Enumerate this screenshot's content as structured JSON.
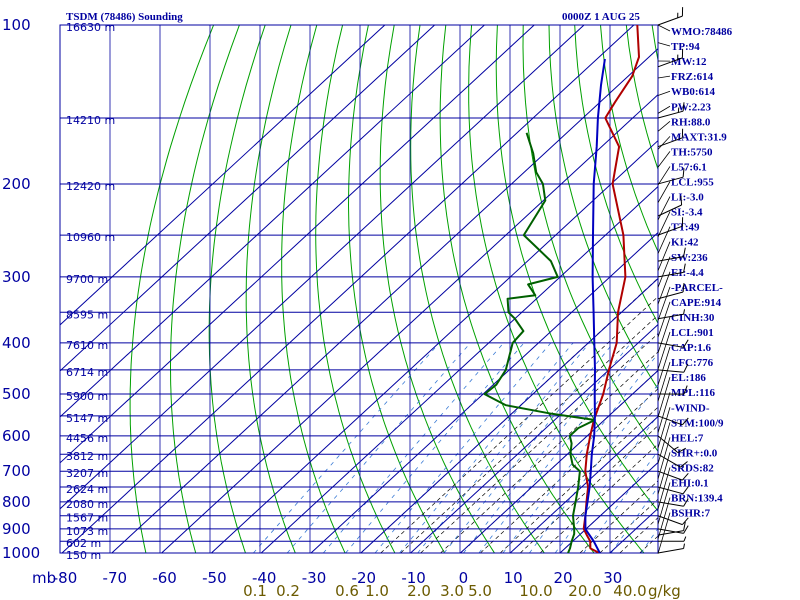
{
  "chart_data": {
    "type": "line",
    "title": "TSDM (78486) Sounding",
    "valid_time": "0000Z  1 AUG 25",
    "pressure_axis": {
      "unit": "mb",
      "ticks": [
        100,
        200,
        300,
        400,
        500,
        600,
        700,
        800,
        900,
        1000
      ],
      "range": [
        100,
        1000
      ],
      "scale": "log"
    },
    "temperature_axis": {
      "ticks": [
        "-80",
        "-70",
        "-60",
        "-50",
        "-40",
        "-30",
        "-20",
        "-10",
        "0",
        "10",
        "20",
        "30"
      ],
      "tick_values": [
        -80,
        -70,
        -60,
        -50,
        -40,
        -30,
        -20,
        -10,
        0,
        10,
        20,
        30
      ]
    },
    "mixing_ratio_axis": {
      "ticks": [
        "0.1",
        "0.2",
        "0.6",
        "1.0",
        "2.0",
        "3.0",
        "5.0",
        "10.0",
        "20.0",
        "40.0"
      ],
      "unit": "g/kg"
    },
    "heights": [
      {
        "p": 100,
        "label": "16630 m"
      },
      {
        "p": 150,
        "label": "14210 m"
      },
      {
        "p": 200,
        "label": "12420 m"
      },
      {
        "p": 250,
        "label": "10960 m"
      },
      {
        "p": 300,
        "label": "9700 m"
      },
      {
        "p": 350,
        "label": "8595 m"
      },
      {
        "p": 400,
        "label": "7610 m"
      },
      {
        "p": 450,
        "label": "6714 m"
      },
      {
        "p": 500,
        "label": "5900 m"
      },
      {
        "p": 550,
        "label": "5147 m"
      },
      {
        "p": 600,
        "label": "4456 m"
      },
      {
        "p": 650,
        "label": "3812 m"
      },
      {
        "p": 700,
        "label": "3207 m"
      },
      {
        "p": 750,
        "label": "2624 m"
      },
      {
        "p": 800,
        "label": "2080 m"
      },
      {
        "p": 850,
        "label": "1567 m"
      },
      {
        "p": 900,
        "label": "1073 m"
      },
      {
        "p": 950,
        "label": "602 m"
      },
      {
        "p": 1000,
        "label": "150 m"
      }
    ],
    "series": [
      {
        "name": "temperature",
        "color": "#b00000",
        "points": [
          [
            1000,
            27.9
          ],
          [
            980,
            25.1
          ],
          [
            950,
            23.5
          ],
          [
            925,
            21.5
          ],
          [
            900,
            19.5
          ],
          [
            850,
            17.0
          ],
          [
            800,
            14.2
          ],
          [
            750,
            11.3
          ],
          [
            700,
            7.3
          ],
          [
            650,
            3.9
          ],
          [
            600,
            0.6
          ],
          [
            560,
            -2.1
          ],
          [
            500,
            -5.9
          ],
          [
            450,
            -10.0
          ],
          [
            400,
            -14.3
          ],
          [
            350,
            -20.7
          ],
          [
            300,
            -26.9
          ],
          [
            250,
            -36.4
          ],
          [
            200,
            -49.7
          ],
          [
            170,
            -56.5
          ],
          [
            150,
            -65.5
          ],
          [
            140,
            -67.0
          ],
          [
            125,
            -69.2
          ],
          [
            115,
            -72.0
          ],
          [
            100,
            -79.3
          ]
        ]
      },
      {
        "name": "dewpoint",
        "color": "#006000",
        "points": [
          [
            1000,
            21.6
          ],
          [
            980,
            21.0
          ],
          [
            950,
            19.8
          ],
          [
            920,
            18.7
          ],
          [
            900,
            17.6
          ],
          [
            850,
            14.5
          ],
          [
            800,
            12.0
          ],
          [
            750,
            9.3
          ],
          [
            700,
            6.2
          ],
          [
            680,
            3.3
          ],
          [
            650,
            0.6
          ],
          [
            620,
            -1.5
          ],
          [
            600,
            -3.5
          ],
          [
            580,
            -3.5
          ],
          [
            560,
            -1.9
          ],
          [
            545,
            -11.9
          ],
          [
            525,
            -23.0
          ],
          [
            500,
            -29.7
          ],
          [
            480,
            -29.4
          ],
          [
            450,
            -30.7
          ],
          [
            400,
            -35.2
          ],
          [
            380,
            -35.6
          ],
          [
            360,
            -40.0
          ],
          [
            350,
            -42.7
          ],
          [
            330,
            -45.8
          ],
          [
            325,
            -41.0
          ],
          [
            310,
            -44.8
          ],
          [
            300,
            -40.5
          ],
          [
            280,
            -45.3
          ],
          [
            250,
            -56.4
          ],
          [
            215,
            -59.6
          ],
          [
            200,
            -63.7
          ],
          [
            190,
            -67.6
          ],
          [
            175,
            -72.3
          ],
          [
            160,
            -78.1
          ]
        ]
      },
      {
        "name": "parcel",
        "color": "#0000c0",
        "points": [
          [
            1000,
            28.0
          ],
          [
            950,
            24.2
          ],
          [
            901,
            19.9
          ],
          [
            850,
            17.0
          ],
          [
            800,
            14.4
          ],
          [
            750,
            11.6
          ],
          [
            700,
            8.4
          ],
          [
            650,
            4.9
          ],
          [
            600,
            1.4
          ],
          [
            550,
            -2.8
          ],
          [
            500,
            -7.6
          ],
          [
            450,
            -12.8
          ],
          [
            400,
            -18.8
          ],
          [
            350,
            -25.6
          ],
          [
            300,
            -33.5
          ],
          [
            250,
            -42.5
          ],
          [
            200,
            -53.5
          ],
          [
            170,
            -61.0
          ],
          [
            150,
            -67.0
          ],
          [
            130,
            -73.5
          ],
          [
            116,
            -78.4
          ]
        ]
      }
    ],
    "indices": [
      {
        "label": "WMO:78486",
        "p": 100
      },
      {
        "label": "TP:94",
        "p": 108
      },
      {
        "label": "MW:12",
        "p": 117
      },
      {
        "label": "FRZ:614",
        "p": 126
      },
      {
        "label": "WB0:614",
        "p": 136
      },
      {
        "label": "PW:2.23",
        "p": 147
      },
      {
        "label": "RH:88.0",
        "p": 159
      },
      {
        "label": "MAXT:31.9",
        "p": 172
      },
      {
        "label": "TH:5750",
        "p": 186
      },
      {
        "label": "L57:6.1",
        "p": 201
      },
      {
        "label": "LCL:955",
        "p": 217
      },
      {
        "label": "LI:-3.0",
        "p": 234
      },
      {
        "label": "SI:-3.4",
        "p": 252
      },
      {
        "label": "TT:49",
        "p": 271
      },
      {
        "label": "KI:42",
        "p": 292
      },
      {
        "label": "SW:236",
        "p": 314
      },
      {
        "label": "EI:-4.4",
        "p": 338
      },
      {
        "label": "-PARCEL-",
        "p": 363
      },
      {
        "label": "CAPE:914",
        "p": 390
      },
      {
        "label": "CINH:30",
        "p": 418
      },
      {
        "label": "LCL:901",
        "p": 449
      },
      {
        "label": "CAP:1.6",
        "p": 481
      },
      {
        "label": "LFC:776",
        "p": 516
      },
      {
        "label": "EL:186",
        "p": 553
      },
      {
        "label": "MPL:116",
        "p": 592
      },
      {
        "label": "-WIND-",
        "p": 633
      },
      {
        "label": "STM:100/9",
        "p": 677
      },
      {
        "label": "HEL:7",
        "p": 724
      },
      {
        "label": "SHR+:0.0",
        "p": 774
      },
      {
        "label": "SRDS:82",
        "p": 826
      },
      {
        "label": "EHI:0.1",
        "p": 882
      },
      {
        "label": "BRN:139.4",
        "p": 941
      },
      {
        "label": "BSHR:7",
        "p": 1003
      }
    ],
    "wind_barbs": [
      {
        "p": 100,
        "dir": 70,
        "kt": 15
      },
      {
        "p": 120,
        "dir": 70,
        "kt": 15
      },
      {
        "p": 150,
        "dir": 75,
        "kt": 15
      },
      {
        "p": 170,
        "dir": 70,
        "kt": 10
      },
      {
        "p": 200,
        "dir": 75,
        "kt": 10
      },
      {
        "p": 230,
        "dir": 65,
        "kt": 10
      },
      {
        "p": 250,
        "dir": 70,
        "kt": 10
      },
      {
        "p": 280,
        "dir": 80,
        "kt": 10
      },
      {
        "p": 300,
        "dir": 80,
        "kt": 10
      },
      {
        "p": 330,
        "dir": 75,
        "kt": 10
      },
      {
        "p": 360,
        "dir": 80,
        "kt": 5
      },
      {
        "p": 400,
        "dir": 100,
        "kt": 10
      },
      {
        "p": 450,
        "dir": 95,
        "kt": 10
      },
      {
        "p": 500,
        "dir": 90,
        "kt": 10
      },
      {
        "p": 550,
        "dir": 110,
        "kt": 10
      },
      {
        "p": 600,
        "dir": 130,
        "kt": 15
      },
      {
        "p": 650,
        "dir": 120,
        "kt": 10
      },
      {
        "p": 700,
        "dir": 110,
        "kt": 10
      },
      {
        "p": 750,
        "dir": 105,
        "kt": 10
      },
      {
        "p": 800,
        "dir": 100,
        "kt": 10
      },
      {
        "p": 850,
        "dir": 110,
        "kt": 10
      },
      {
        "p": 900,
        "dir": 100,
        "kt": 10
      },
      {
        "p": 925,
        "dir": 80,
        "kt": 10
      },
      {
        "p": 950,
        "dir": 90,
        "kt": 5
      },
      {
        "p": 1000,
        "dir": 80,
        "kt": 5
      }
    ]
  },
  "colors": {
    "grid": "#0000a0",
    "dry_adiabat": "#00a000",
    "moist_adiabat": "#000000",
    "mixing_ratio": "#3a7bd5",
    "temperature": "#b00000",
    "dewpoint": "#006000",
    "parcel": "#0000c0",
    "title_text": "#0000a0",
    "mixing_ratio_text": "#6b5a00"
  }
}
